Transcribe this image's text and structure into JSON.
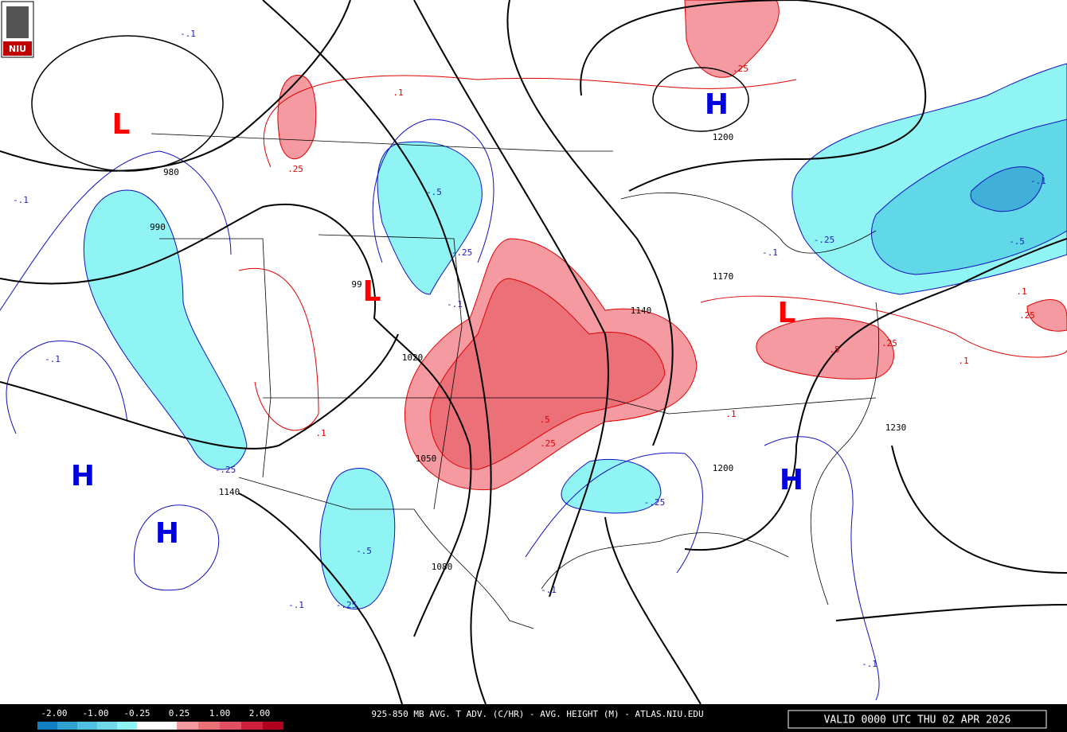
{
  "logo": "NIU",
  "centers": [
    "L",
    "L",
    "L",
    "H",
    "H",
    "H",
    "H"
  ],
  "height_labels": [
    "980",
    "990",
    "99",
    "1020",
    "1050",
    "1140",
    "1080",
    "1170",
    "1140",
    "1200",
    "1200",
    "1230"
  ],
  "advection_labels": [
    ".1",
    ".25",
    "-.1",
    "-.1",
    "-.1",
    "-.5",
    "-.25",
    "-.1",
    ".1",
    ".5",
    ".25",
    "-.25",
    "-.5",
    "-.25",
    "-.1",
    "-.25",
    "-.1",
    ".25",
    ".1",
    ".5",
    ".25",
    ".1",
    ".1",
    ".25",
    "-.1",
    "-.5",
    "-.1",
    "-.25",
    "-.1"
  ],
  "legend": {
    "ticks": [
      "-2.00",
      "-1.00",
      "-0.25",
      "0.25",
      "1.00",
      "2.00"
    ]
  },
  "footer": {
    "title": "925-850 MB AVG. T ADV. (C/HR) - AVG. HEIGHT (M) - ATLAS.NIU.EDU",
    "valid": "VALID 0000 UTC THU 02 APR 2026"
  }
}
